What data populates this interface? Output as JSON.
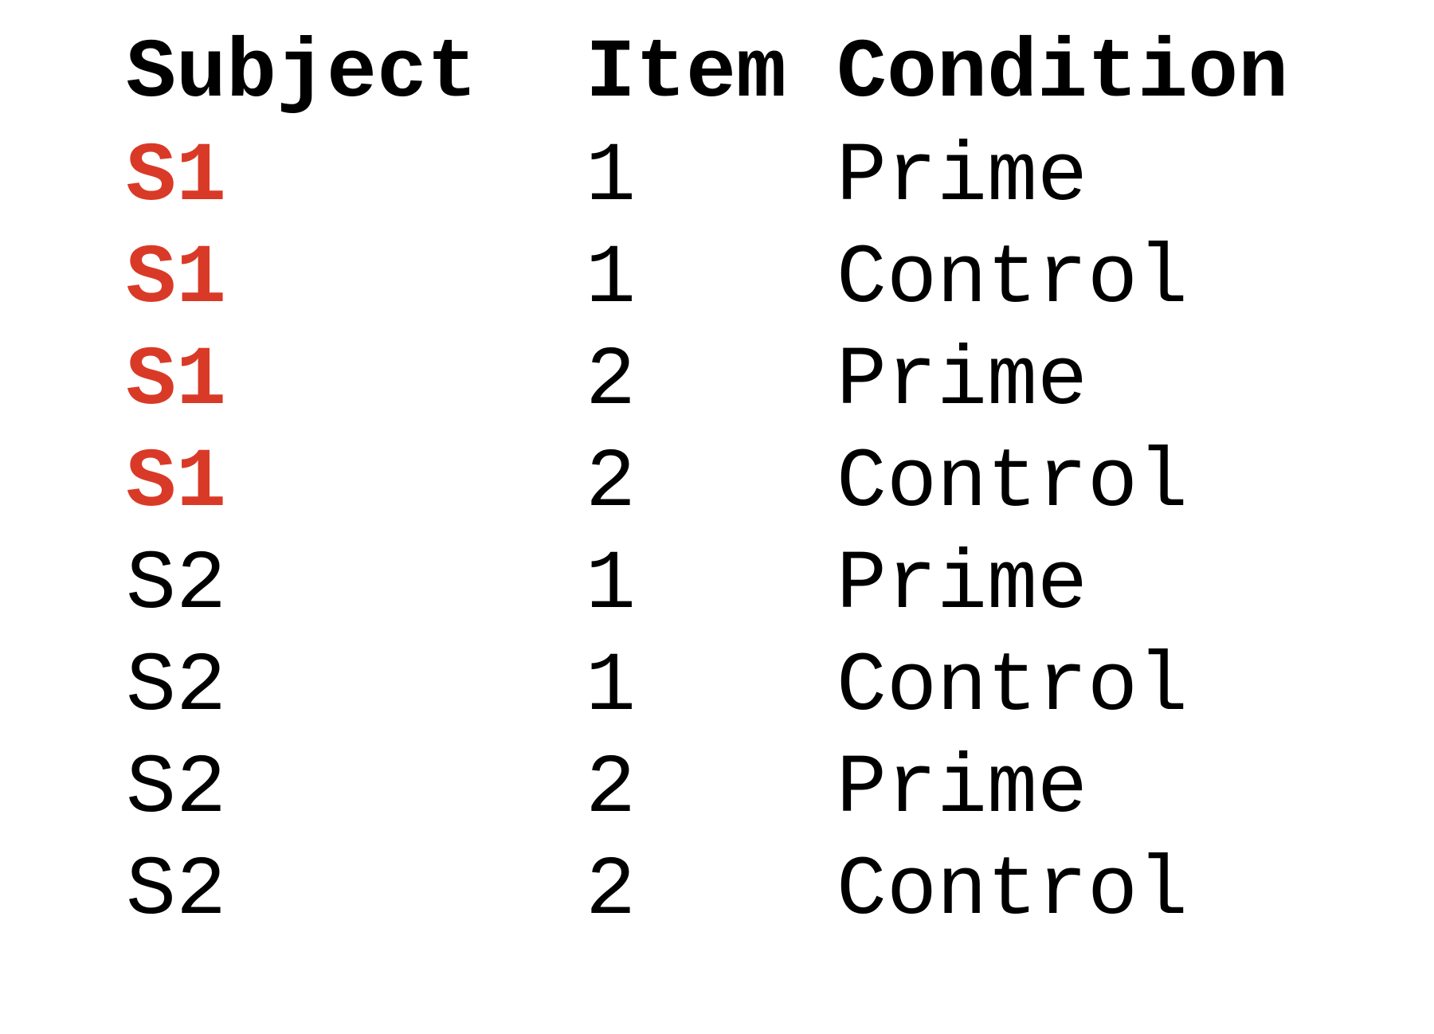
{
  "table": {
    "headers": [
      "Subject",
      "Item",
      "Condition"
    ],
    "rows": [
      {
        "subject": "S1",
        "item": "1",
        "condition": "Prime",
        "highlight": true
      },
      {
        "subject": "S1",
        "item": "1",
        "condition": "Control",
        "highlight": true
      },
      {
        "subject": "S1",
        "item": "2",
        "condition": "Prime",
        "highlight": true
      },
      {
        "subject": "S1",
        "item": "2",
        "condition": "Control",
        "highlight": true
      },
      {
        "subject": "S2",
        "item": "1",
        "condition": "Prime",
        "highlight": false
      },
      {
        "subject": "S2",
        "item": "1",
        "condition": "Control",
        "highlight": false
      },
      {
        "subject": "S2",
        "item": "2",
        "condition": "Prime",
        "highlight": false
      },
      {
        "subject": "S2",
        "item": "2",
        "condition": "Control",
        "highlight": false
      }
    ],
    "highlight_color": "#d93a27"
  }
}
